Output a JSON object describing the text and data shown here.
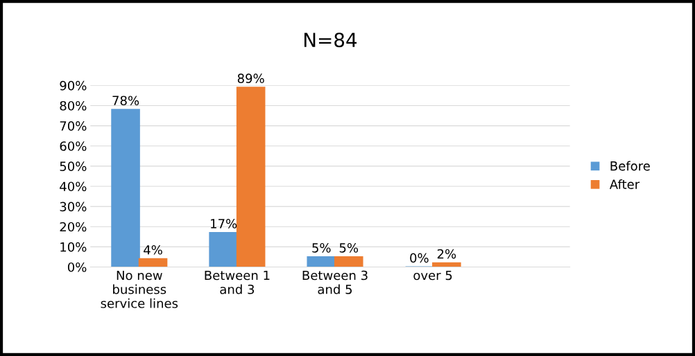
{
  "chart_data": {
    "type": "bar",
    "title": "N=84",
    "categories": [
      "No new\nbusiness\nservice lines",
      "Between 1\nand 3",
      "Between 3\nand 5",
      "over 5"
    ],
    "series": [
      {
        "name": "Before",
        "color": "#5b9bd5",
        "values": [
          78,
          17,
          5,
          0
        ],
        "value_labels": [
          "78%",
          "17%",
          "5%",
          "0%"
        ]
      },
      {
        "name": "After",
        "color": "#ed7d31",
        "values": [
          4,
          89,
          5,
          2
        ],
        "value_labels": [
          "4%",
          "89%",
          "5%",
          "2%"
        ]
      }
    ],
    "ylim": [
      0,
      90
    ],
    "yticks": [
      {
        "value": 0,
        "label": "0%"
      },
      {
        "value": 10,
        "label": "10%"
      },
      {
        "value": 20,
        "label": "20%"
      },
      {
        "value": 30,
        "label": "30%"
      },
      {
        "value": 40,
        "label": "40%"
      },
      {
        "value": 50,
        "label": "50%"
      },
      {
        "value": 60,
        "label": "60%"
      },
      {
        "value": 70,
        "label": "70%"
      },
      {
        "value": 80,
        "label": "80%"
      },
      {
        "value": 90,
        "label": "90%"
      }
    ],
    "grid": "y",
    "legend": "right"
  }
}
